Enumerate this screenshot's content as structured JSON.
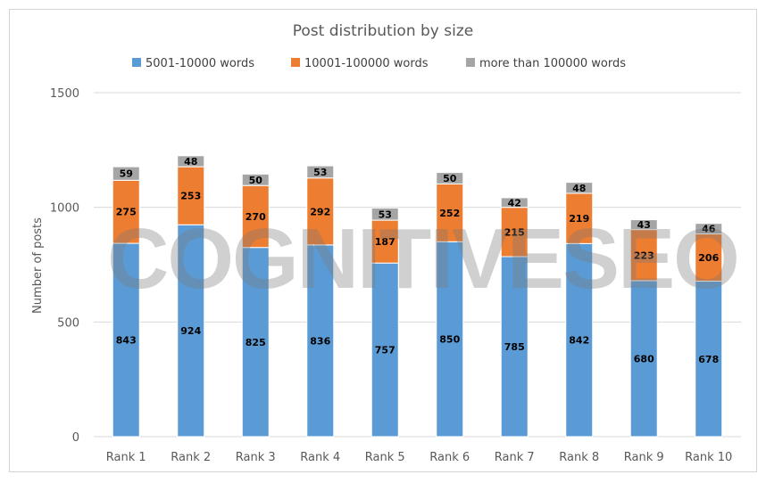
{
  "chart_data": {
    "type": "bar",
    "stacked": true,
    "title": "Post distribution by size",
    "xlabel": "",
    "ylabel": "Number of posts",
    "ylim": [
      0,
      1500
    ],
    "yticks": [
      0,
      500,
      1000,
      1500
    ],
    "grid": true,
    "legend_position": "top",
    "categories": [
      "Rank 1",
      "Rank 2",
      "Rank 3",
      "Rank 4",
      "Rank 5",
      "Rank 6",
      "Rank 7",
      "Rank 8",
      "Rank 9",
      "Rank 10"
    ],
    "series": [
      {
        "name": "5001-10000 words",
        "color": "#5B9BD5",
        "values": [
          843,
          924,
          825,
          836,
          757,
          850,
          785,
          842,
          680,
          678
        ]
      },
      {
        "name": "10001-100000 words",
        "color": "#ED7D31",
        "values": [
          275,
          253,
          270,
          292,
          187,
          252,
          215,
          219,
          223,
          206
        ]
      },
      {
        "name": "more than 100000 words",
        "color": "#A5A5A5",
        "values": [
          59,
          48,
          50,
          53,
          53,
          50,
          42,
          48,
          43,
          46
        ]
      }
    ]
  },
  "watermark": "COGNITIVESEO"
}
